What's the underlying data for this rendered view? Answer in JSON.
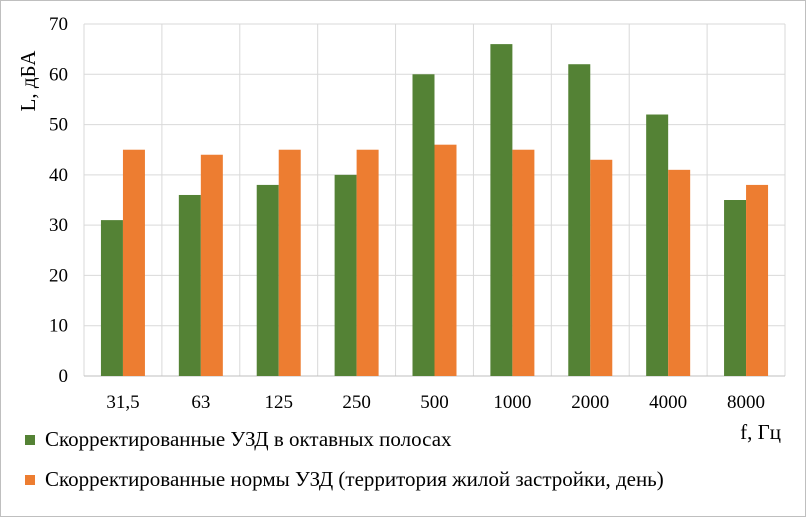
{
  "chart_data": {
    "type": "bar",
    "categories": [
      "31,5",
      "63",
      "125",
      "250",
      "500",
      "1000",
      "2000",
      "4000",
      "8000"
    ],
    "series": [
      {
        "name": "Скорректированные УЗД в октавных полосах",
        "color": "#548235",
        "values": [
          31,
          36,
          38,
          40,
          60,
          66,
          62,
          52,
          35
        ]
      },
      {
        "name": "Скорректированные нормы УЗД (территория жилой застройки, день)",
        "color": "#ed7d31",
        "values": [
          45,
          44,
          45,
          45,
          46,
          45,
          43,
          41,
          38
        ]
      }
    ],
    "xlabel": "f, Гц",
    "ylabel": "L, дБА",
    "ylim": [
      0,
      70
    ],
    "yticks": [
      0,
      10,
      20,
      30,
      40,
      50,
      60,
      70
    ],
    "grid": true,
    "legend_position": "bottom"
  }
}
